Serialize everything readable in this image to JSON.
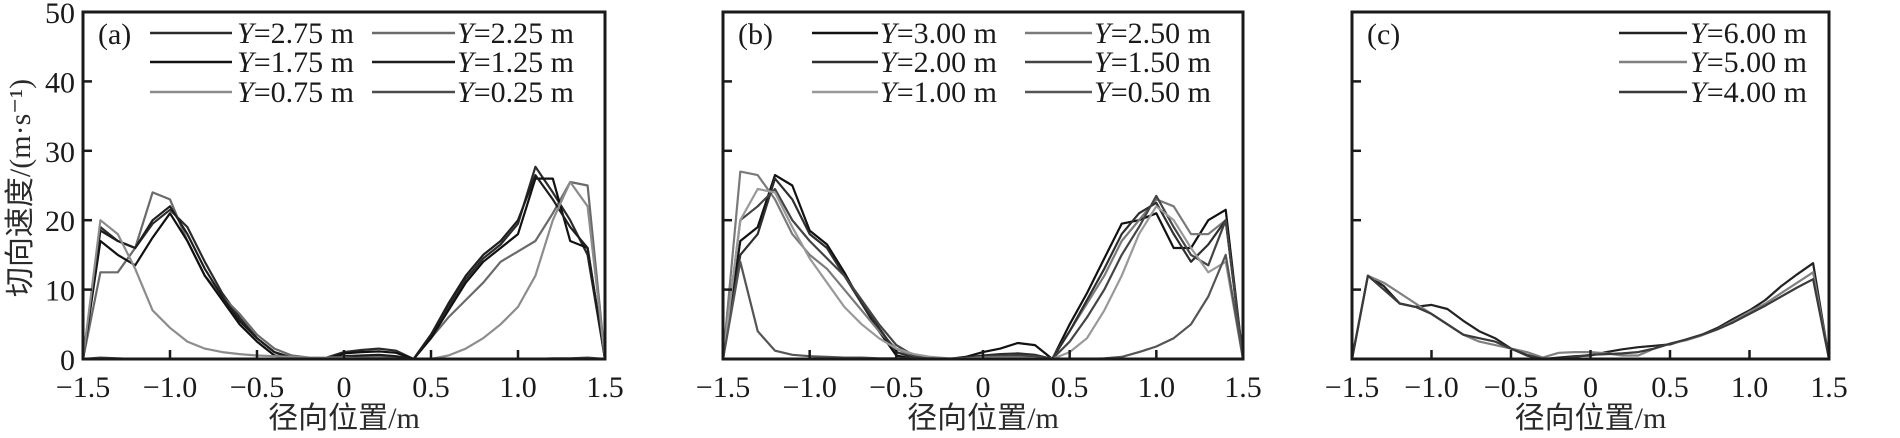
{
  "chart_data": [
    {
      "type": "line",
      "panel_label": "(a)",
      "xlabel": "径向位置/m",
      "ylabel": "切向速度/(m·s⁻¹)",
      "xlim": [
        -1.5,
        1.5
      ],
      "ylim": [
        0,
        50
      ],
      "x_ticks": [
        "−1.5",
        "−1.0",
        "−0.5",
        "0",
        "0.5",
        "1.0",
        "1.5"
      ],
      "x_tick_values": [
        -1.5,
        -1.0,
        -0.5,
        0,
        0.5,
        1.0,
        1.5
      ],
      "y_ticks": [
        "0",
        "10",
        "20",
        "30",
        "40",
        "50"
      ],
      "y_tick_values": [
        0,
        10,
        20,
        30,
        40,
        50
      ],
      "legend_placement": "top-right",
      "grid": false,
      "x": [
        -1.5,
        -1.4,
        -1.3,
        -1.2,
        -1.1,
        -1.0,
        -0.9,
        -0.8,
        -0.7,
        -0.6,
        -0.5,
        -0.4,
        -0.3,
        -0.2,
        -0.1,
        0,
        0.1,
        0.2,
        0.3,
        0.4,
        0.5,
        0.6,
        0.7,
        0.8,
        0.9,
        1.0,
        1.1,
        1.2,
        1.3,
        1.4,
        1.5
      ],
      "series": [
        {
          "name": "Y=2.75 m",
          "color": "#2b2b2b",
          "values": [
            0,
            19,
            17,
            16,
            19.5,
            21.5,
            19,
            14,
            9.5,
            6,
            3,
            1,
            0,
            0,
            0.2,
            1,
            1.3,
            1.5,
            1.2,
            0,
            3.5,
            7.5,
            11.5,
            14.5,
            16.5,
            19.5,
            27.7,
            24,
            20,
            15,
            0
          ]
        },
        {
          "name": "Y=2.25 m",
          "color": "#6a6a6a",
          "values": [
            0,
            12.5,
            12.5,
            16,
            24,
            23,
            17,
            12,
            9,
            6.5,
            3.5,
            1.5,
            0.5,
            0.2,
            0.1,
            0.3,
            0.3,
            0.3,
            0.2,
            0,
            3,
            6,
            8.5,
            11,
            14,
            15.5,
            17,
            21,
            25.5,
            25,
            0
          ]
        },
        {
          "name": "Y=1.75 m",
          "color": "#111111",
          "values": [
            0,
            17,
            15,
            13.5,
            17.5,
            21,
            17,
            12,
            8.5,
            5,
            2.5,
            0.5,
            0,
            0,
            0,
            0.8,
            1,
            1.1,
            0.9,
            0,
            3,
            7,
            11,
            14,
            16,
            18,
            26,
            26,
            17,
            16,
            0
          ]
        },
        {
          "name": "Y=1.25 m",
          "color": "#1e1e1e",
          "values": [
            0,
            18.5,
            17,
            16,
            20,
            22,
            18,
            13,
            9,
            5.5,
            3,
            1,
            0.2,
            0,
            0.1,
            0.4,
            0.5,
            0.6,
            0.4,
            0,
            3.5,
            8,
            12,
            15,
            17,
            20,
            26.5,
            23,
            19,
            16,
            0
          ]
        },
        {
          "name": "Y=0.75 m",
          "color": "#8c8c8c",
          "values": [
            0,
            20,
            18,
            13,
            7,
            4.5,
            2.5,
            1.5,
            1,
            0.7,
            0.5,
            0.4,
            0.3,
            0.2,
            0.2,
            0.2,
            0.1,
            0.1,
            0,
            0,
            0,
            0.5,
            1.5,
            3,
            5,
            7.5,
            12,
            20,
            25.5,
            22,
            0
          ]
        },
        {
          "name": "Y=0.25 m",
          "color": "#4a4a4a",
          "values": [
            0,
            0.2,
            0.1,
            0,
            0,
            0,
            0,
            0,
            0,
            0,
            0,
            0,
            0,
            0,
            0,
            0,
            0,
            0,
            0,
            0,
            0,
            0,
            0,
            0,
            0,
            0,
            0,
            0.1,
            0.1,
            0.2,
            0
          ]
        }
      ]
    },
    {
      "type": "line",
      "panel_label": "(b)",
      "xlabel": "径向位置/m",
      "xlim": [
        -1.5,
        1.5
      ],
      "ylim": [
        0,
        50
      ],
      "x_ticks": [
        "−1.5",
        "−1.0",
        "−0.5",
        "0",
        "0.5",
        "1.0",
        "1.5"
      ],
      "x_tick_values": [
        -1.5,
        -1.0,
        -0.5,
        0,
        0.5,
        1.0,
        1.5
      ],
      "y_tick_values": [
        0,
        10,
        20,
        30,
        40,
        50
      ],
      "legend_placement": "top-right",
      "grid": false,
      "x": [
        -1.5,
        -1.4,
        -1.3,
        -1.2,
        -1.1,
        -1.0,
        -0.9,
        -0.8,
        -0.7,
        -0.6,
        -0.5,
        -0.4,
        -0.3,
        -0.2,
        -0.1,
        0,
        0.1,
        0.2,
        0.3,
        0.4,
        0.5,
        0.6,
        0.7,
        0.8,
        0.9,
        1.0,
        1.1,
        1.2,
        1.3,
        1.4,
        1.5
      ],
      "series": [
        {
          "name": "Y=3.00 m",
          "color": "#111111",
          "values": [
            0,
            17,
            19,
            26.5,
            25,
            18.5,
            16.5,
            12.5,
            8,
            4,
            0.5,
            0,
            0,
            0,
            0.3,
            1,
            1.5,
            2.3,
            2,
            0,
            5,
            9.5,
            14.5,
            19.5,
            20,
            21,
            16,
            16,
            20,
            21.5,
            0
          ]
        },
        {
          "name": "Y=2.50 m",
          "color": "#7a7a7a",
          "values": [
            0,
            27,
            26.5,
            23,
            18,
            15,
            13,
            10,
            7,
            4,
            1.5,
            0.3,
            0.1,
            0,
            0.1,
            0.3,
            0.4,
            0.5,
            0.4,
            0.1,
            4,
            8,
            12,
            17,
            20,
            23,
            22,
            18,
            18,
            20,
            0
          ]
        },
        {
          "name": "Y=2.00 m",
          "color": "#2e2e2e",
          "values": [
            0,
            15,
            18,
            26,
            23,
            18,
            16,
            12,
            8,
            4.5,
            1,
            0.2,
            0,
            0,
            0.2,
            0.5,
            0.7,
            0.8,
            0.6,
            0,
            4,
            8.5,
            13,
            18,
            21,
            22.5,
            18,
            14,
            16.5,
            20,
            0
          ]
        },
        {
          "name": "Y=1.50 m",
          "color": "#444444",
          "values": [
            0,
            20,
            22,
            24.5,
            20,
            17,
            14.5,
            12,
            8.5,
            5,
            2,
            0.5,
            0.1,
            0,
            0.1,
            0.3,
            0.4,
            0.5,
            0.4,
            0,
            2.5,
            6,
            10,
            15,
            19,
            23.5,
            19,
            15,
            13.5,
            20,
            0
          ]
        },
        {
          "name": "Y=1.00 m",
          "color": "#999999",
          "values": [
            0,
            20,
            24.5,
            24,
            19,
            14.5,
            11,
            7.5,
            5,
            3,
            1.5,
            0.7,
            0.3,
            0.1,
            0.1,
            0.2,
            0.2,
            0.2,
            0.1,
            0,
            1,
            3,
            7,
            12,
            18,
            22,
            20,
            16,
            12.5,
            14,
            0
          ]
        },
        {
          "name": "Y=0.50 m",
          "color": "#555555",
          "values": [
            0,
            14,
            4,
            1.2,
            0.6,
            0.4,
            0.3,
            0.2,
            0.2,
            0.1,
            0.1,
            0.1,
            0.1,
            0,
            0,
            0,
            0,
            0,
            0,
            0,
            0,
            0,
            0.1,
            0.3,
            1,
            1.8,
            3,
            5,
            9,
            15,
            0
          ]
        }
      ]
    },
    {
      "type": "line",
      "panel_label": "(c)",
      "xlabel": "径向位置/m",
      "xlim": [
        -1.5,
        1.5
      ],
      "ylim": [
        0,
        50
      ],
      "x_ticks": [
        "−1.5",
        "−1.0",
        "−0.5",
        "0",
        "0.5",
        "1.0",
        "1.5"
      ],
      "x_tick_values": [
        -1.5,
        -1.0,
        -0.5,
        0,
        0.5,
        1.0,
        1.5
      ],
      "y_tick_values": [
        0,
        10,
        20,
        30,
        40,
        50
      ],
      "legend_placement": "top-right",
      "grid": false,
      "x": [
        -1.5,
        -1.4,
        -1.3,
        -1.2,
        -1.1,
        -1.0,
        -0.9,
        -0.8,
        -0.7,
        -0.6,
        -0.5,
        -0.4,
        -0.3,
        -0.2,
        -0.1,
        0,
        0.1,
        0.2,
        0.3,
        0.4,
        0.5,
        0.6,
        0.7,
        0.8,
        0.9,
        1.0,
        1.1,
        1.2,
        1.3,
        1.4,
        1.5
      ],
      "series": [
        {
          "name": "Y=6.00 m",
          "color": "#222222",
          "values": [
            0,
            12,
            10.5,
            8,
            7.5,
            7.8,
            7.2,
            5.5,
            4,
            3,
            1.5,
            0.5,
            0,
            0.2,
            0.4,
            0.5,
            1,
            1.4,
            1.7,
            1.9,
            2.1,
            2.8,
            3.5,
            4.5,
            5.8,
            7,
            8.5,
            10.5,
            12.2,
            13.8,
            0
          ]
        },
        {
          "name": "Y=5.00 m",
          "color": "#808080",
          "values": [
            0,
            12,
            11,
            9.5,
            8,
            6.5,
            5,
            3.5,
            2.5,
            2,
            1.5,
            1,
            0.2,
            0.9,
            1,
            1,
            0.8,
            0.5,
            0.5,
            1.5,
            2.2,
            2.7,
            3.4,
            4.3,
            5.5,
            6.8,
            8,
            9.5,
            11,
            12.5,
            0
          ]
        },
        {
          "name": "Y=4.00 m",
          "color": "#3a3a3a",
          "values": [
            0,
            12,
            10,
            8,
            7.5,
            6.5,
            5,
            3.5,
            3,
            2.5,
            1.5,
            0.6,
            0,
            0,
            0.3,
            0.6,
            0.7,
            0.8,
            1,
            1.5,
            2.2,
            2.8,
            3.5,
            4.3,
            5.3,
            6.5,
            7.7,
            9,
            10.3,
            11.5,
            0
          ]
        }
      ]
    }
  ]
}
